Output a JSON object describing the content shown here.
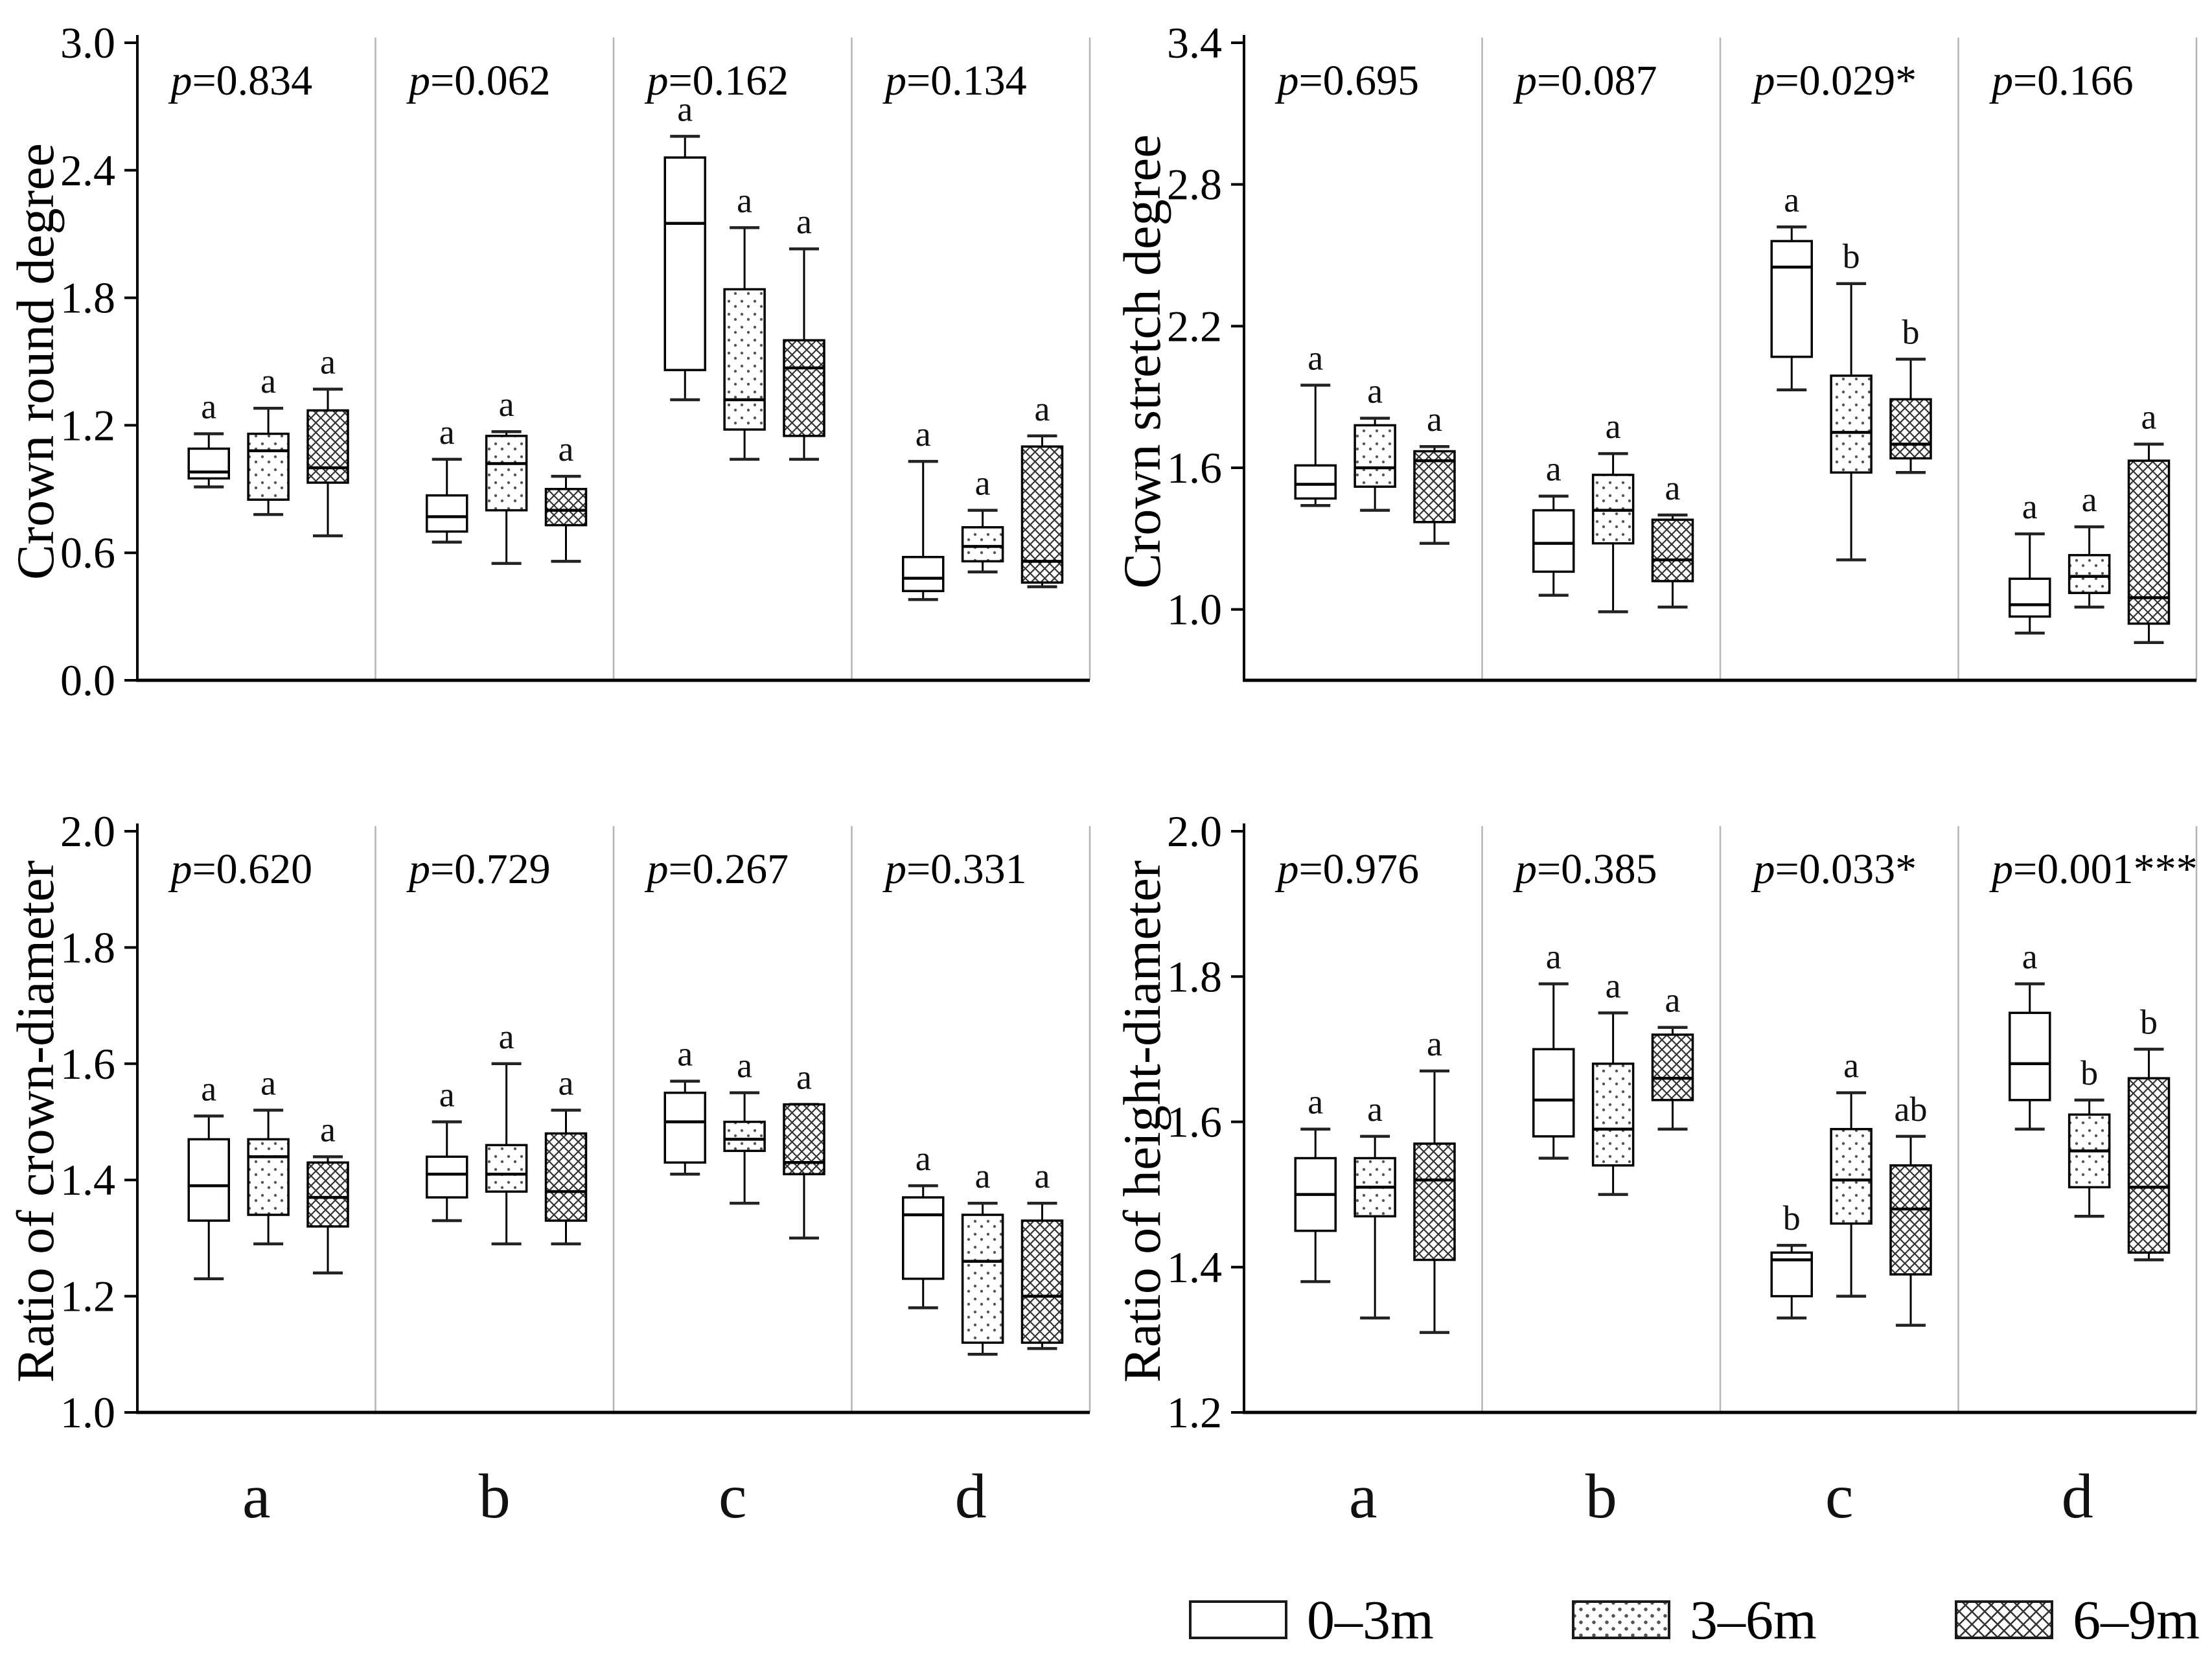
{
  "figure": {
    "background": "#ffffff",
    "ink_color": "#000000",
    "divider_color": "#b5b5b5"
  },
  "group_labels": [
    "a",
    "b",
    "c",
    "d"
  ],
  "legend": {
    "items": [
      {
        "label": "0–3m",
        "pattern": "plain"
      },
      {
        "label": "3–6m",
        "pattern": "dots"
      },
      {
        "label": "6–9m",
        "pattern": "crosshatch"
      }
    ]
  },
  "chart_data": [
    {
      "type": "box",
      "ylabel": "Crown round degree",
      "ylim": [
        0.0,
        3.0
      ],
      "yticks": [
        "3.0",
        "2.4",
        "1.8",
        "1.2",
        "0.6",
        "0.0"
      ],
      "legend_position": "none",
      "grid": false,
      "series": [
        "0–3m",
        "3–6m",
        "6–9m"
      ],
      "groups": [
        {
          "label": "a",
          "p_text": "p=0.834",
          "boxes": [
            {
              "series": "0–3m",
              "whislo": 0.91,
              "q1": 0.95,
              "med": 0.98,
              "q3": 1.09,
              "whishi": 1.16,
              "sig": "a"
            },
            {
              "series": "3–6m",
              "whislo": 0.78,
              "q1": 0.85,
              "med": 1.08,
              "q3": 1.16,
              "whishi": 1.28,
              "sig": "a"
            },
            {
              "series": "6–9m",
              "whislo": 0.68,
              "q1": 0.93,
              "med": 1.0,
              "q3": 1.27,
              "whishi": 1.37,
              "sig": "a"
            }
          ]
        },
        {
          "label": "b",
          "p_text": "p=0.062",
          "boxes": [
            {
              "series": "0–3m",
              "whislo": 0.65,
              "q1": 0.7,
              "med": 0.77,
              "q3": 0.87,
              "whishi": 1.04,
              "sig": "a"
            },
            {
              "series": "3–6m",
              "whislo": 0.55,
              "q1": 0.8,
              "med": 1.02,
              "q3": 1.15,
              "whishi": 1.17,
              "sig": "a"
            },
            {
              "series": "6–9m",
              "whislo": 0.56,
              "q1": 0.73,
              "med": 0.8,
              "q3": 0.9,
              "whishi": 0.96,
              "sig": "a"
            }
          ]
        },
        {
          "label": "c",
          "p_text": "p=0.162",
          "boxes": [
            {
              "series": "0–3m",
              "whislo": 1.32,
              "q1": 1.46,
              "med": 2.15,
              "q3": 2.46,
              "whishi": 2.56,
              "sig": "a"
            },
            {
              "series": "3–6m",
              "whislo": 1.04,
              "q1": 1.18,
              "med": 1.32,
              "q3": 1.84,
              "whishi": 2.13,
              "sig": "a"
            },
            {
              "series": "6–9m",
              "whislo": 1.04,
              "q1": 1.15,
              "med": 1.47,
              "q3": 1.6,
              "whishi": 2.03,
              "sig": "a"
            }
          ]
        },
        {
          "label": "d",
          "p_text": "p=0.134",
          "boxes": [
            {
              "series": "0–3m",
              "whislo": 0.38,
              "q1": 0.42,
              "med": 0.48,
              "q3": 0.58,
              "whishi": 1.03,
              "sig": "a"
            },
            {
              "series": "3–6m",
              "whislo": 0.51,
              "q1": 0.56,
              "med": 0.63,
              "q3": 0.72,
              "whishi": 0.8,
              "sig": "a"
            },
            {
              "series": "6–9m",
              "whislo": 0.44,
              "q1": 0.46,
              "med": 0.56,
              "q3": 1.1,
              "whishi": 1.15,
              "sig": "a"
            }
          ]
        }
      ]
    },
    {
      "type": "box",
      "ylabel": "Crown stretch degree",
      "ylim": [
        0.7,
        3.4
      ],
      "yticks": [
        "3.4",
        "2.8",
        "2.2",
        "1.6",
        "1.0"
      ],
      "legend_position": "none",
      "grid": false,
      "series": [
        "0–3m",
        "3–6m",
        "6–9m"
      ],
      "groups": [
        {
          "label": "a",
          "p_text": "p=0.695",
          "boxes": [
            {
              "series": "0–3m",
              "whislo": 1.44,
              "q1": 1.47,
              "med": 1.53,
              "q3": 1.61,
              "whishi": 1.95,
              "sig": "a"
            },
            {
              "series": "3–6m",
              "whislo": 1.42,
              "q1": 1.52,
              "med": 1.6,
              "q3": 1.78,
              "whishi": 1.81,
              "sig": "a"
            },
            {
              "series": "6–9m",
              "whislo": 1.28,
              "q1": 1.37,
              "med": 1.63,
              "q3": 1.67,
              "whishi": 1.69,
              "sig": "a"
            }
          ]
        },
        {
          "label": "b",
          "p_text": "p=0.087",
          "boxes": [
            {
              "series": "0–3m",
              "whislo": 1.06,
              "q1": 1.16,
              "med": 1.28,
              "q3": 1.42,
              "whishi": 1.48,
              "sig": "a"
            },
            {
              "series": "3–6m",
              "whislo": 0.99,
              "q1": 1.28,
              "med": 1.42,
              "q3": 1.57,
              "whishi": 1.66,
              "sig": "a"
            },
            {
              "series": "6–9m",
              "whislo": 1.01,
              "q1": 1.12,
              "med": 1.21,
              "q3": 1.38,
              "whishi": 1.4,
              "sig": "a"
            }
          ]
        },
        {
          "label": "c",
          "p_text": "p=0.029*",
          "boxes": [
            {
              "series": "0–3m",
              "whislo": 1.93,
              "q1": 2.07,
              "med": 2.45,
              "q3": 2.56,
              "whishi": 2.62,
              "sig": "a"
            },
            {
              "series": "3–6m",
              "whislo": 1.21,
              "q1": 1.58,
              "med": 1.75,
              "q3": 1.99,
              "whishi": 2.38,
              "sig": "b"
            },
            {
              "series": "6–9m",
              "whislo": 1.58,
              "q1": 1.64,
              "med": 1.7,
              "q3": 1.89,
              "whishi": 2.06,
              "sig": "b"
            }
          ]
        },
        {
          "label": "d",
          "p_text": "p=0.166",
          "boxes": [
            {
              "series": "0–3m",
              "whislo": 0.9,
              "q1": 0.97,
              "med": 1.02,
              "q3": 1.13,
              "whishi": 1.32,
              "sig": "a"
            },
            {
              "series": "3–6m",
              "whislo": 1.01,
              "q1": 1.07,
              "med": 1.14,
              "q3": 1.23,
              "whishi": 1.35,
              "sig": "a"
            },
            {
              "series": "6–9m",
              "whislo": 0.86,
              "q1": 0.94,
              "med": 1.05,
              "q3": 1.63,
              "whishi": 1.7,
              "sig": "a"
            }
          ]
        }
      ]
    },
    {
      "type": "box",
      "ylabel": "Ratio of crown-diameter",
      "ylim": [
        1.0,
        2.0
      ],
      "yticks": [
        "2.0",
        "1.8",
        "1.6",
        "1.4",
        "1.2",
        "1.0"
      ],
      "legend_position": "none",
      "grid": false,
      "series": [
        "0–3m",
        "3–6m",
        "6–9m"
      ],
      "groups": [
        {
          "label": "a",
          "p_text": "p=0.620",
          "boxes": [
            {
              "series": "0–3m",
              "whislo": 1.23,
              "q1": 1.33,
              "med": 1.39,
              "q3": 1.47,
              "whishi": 1.51,
              "sig": "a"
            },
            {
              "series": "3–6m",
              "whislo": 1.29,
              "q1": 1.34,
              "med": 1.44,
              "q3": 1.47,
              "whishi": 1.52,
              "sig": "a"
            },
            {
              "series": "6–9m",
              "whislo": 1.24,
              "q1": 1.32,
              "med": 1.37,
              "q3": 1.43,
              "whishi": 1.44,
              "sig": "a"
            }
          ]
        },
        {
          "label": "b",
          "p_text": "p=0.729",
          "boxes": [
            {
              "series": "0–3m",
              "whislo": 1.33,
              "q1": 1.37,
              "med": 1.41,
              "q3": 1.44,
              "whishi": 1.5,
              "sig": "a"
            },
            {
              "series": "3–6m",
              "whislo": 1.29,
              "q1": 1.38,
              "med": 1.41,
              "q3": 1.46,
              "whishi": 1.6,
              "sig": "a"
            },
            {
              "series": "6–9m",
              "whislo": 1.29,
              "q1": 1.33,
              "med": 1.38,
              "q3": 1.48,
              "whishi": 1.52,
              "sig": "a"
            }
          ]
        },
        {
          "label": "c",
          "p_text": "p=0.267",
          "boxes": [
            {
              "series": "0–3m",
              "whislo": 1.41,
              "q1": 1.43,
              "med": 1.5,
              "q3": 1.55,
              "whishi": 1.57,
              "sig": "a"
            },
            {
              "series": "3–6m",
              "whislo": 1.36,
              "q1": 1.45,
              "med": 1.47,
              "q3": 1.5,
              "whishi": 1.55,
              "sig": "a"
            },
            {
              "series": "6–9m",
              "whislo": 1.3,
              "q1": 1.41,
              "med": 1.43,
              "q3": 1.53,
              "whishi": 1.53,
              "sig": "a"
            }
          ]
        },
        {
          "label": "d",
          "p_text": "p=0.331",
          "boxes": [
            {
              "series": "0–3m",
              "whislo": 1.18,
              "q1": 1.23,
              "med": 1.34,
              "q3": 1.37,
              "whishi": 1.39,
              "sig": "a"
            },
            {
              "series": "3–6m",
              "whislo": 1.1,
              "q1": 1.12,
              "med": 1.26,
              "q3": 1.34,
              "whishi": 1.36,
              "sig": "a"
            },
            {
              "series": "6–9m",
              "whislo": 1.11,
              "q1": 1.12,
              "med": 1.2,
              "q3": 1.33,
              "whishi": 1.36,
              "sig": "a"
            }
          ]
        }
      ]
    },
    {
      "type": "box",
      "ylabel": "Ratio of height-diameter",
      "ylim": [
        1.2,
        2.0
      ],
      "yticks": [
        "2.0",
        "1.8",
        "1.6",
        "1.4",
        "1.2"
      ],
      "legend_position": "bottom-right",
      "grid": false,
      "series": [
        "0–3m",
        "3–6m",
        "6–9m"
      ],
      "groups": [
        {
          "label": "a",
          "p_text": "p=0.976",
          "boxes": [
            {
              "series": "0–3m",
              "whislo": 1.38,
              "q1": 1.45,
              "med": 1.5,
              "q3": 1.55,
              "whishi": 1.59,
              "sig": "a"
            },
            {
              "series": "3–6m",
              "whislo": 1.33,
              "q1": 1.47,
              "med": 1.51,
              "q3": 1.55,
              "whishi": 1.58,
              "sig": "a"
            },
            {
              "series": "6–9m",
              "whislo": 1.31,
              "q1": 1.41,
              "med": 1.52,
              "q3": 1.57,
              "whishi": 1.67,
              "sig": "a"
            }
          ]
        },
        {
          "label": "b",
          "p_text": "p=0.385",
          "boxes": [
            {
              "series": "0–3m",
              "whislo": 1.55,
              "q1": 1.58,
              "med": 1.63,
              "q3": 1.7,
              "whishi": 1.79,
              "sig": "a"
            },
            {
              "series": "3–6m",
              "whislo": 1.5,
              "q1": 1.54,
              "med": 1.59,
              "q3": 1.68,
              "whishi": 1.75,
              "sig": "a"
            },
            {
              "series": "6–9m",
              "whislo": 1.59,
              "q1": 1.63,
              "med": 1.66,
              "q3": 1.72,
              "whishi": 1.73,
              "sig": "a"
            }
          ]
        },
        {
          "label": "c",
          "p_text": "p=0.033*",
          "boxes": [
            {
              "series": "0–3m",
              "whislo": 1.33,
              "q1": 1.36,
              "med": 1.41,
              "q3": 1.42,
              "whishi": 1.43,
              "sig": "b"
            },
            {
              "series": "3–6m",
              "whislo": 1.36,
              "q1": 1.46,
              "med": 1.52,
              "q3": 1.59,
              "whishi": 1.64,
              "sig": "a"
            },
            {
              "series": "6–9m",
              "whislo": 1.32,
              "q1": 1.39,
              "med": 1.48,
              "q3": 1.54,
              "whishi": 1.58,
              "sig": "ab"
            }
          ]
        },
        {
          "label": "d",
          "p_text": "p=0.001***",
          "boxes": [
            {
              "series": "0–3m",
              "whislo": 1.59,
              "q1": 1.63,
              "med": 1.68,
              "q3": 1.75,
              "whishi": 1.79,
              "sig": "a"
            },
            {
              "series": "3–6m",
              "whislo": 1.47,
              "q1": 1.51,
              "med": 1.56,
              "q3": 1.61,
              "whishi": 1.63,
              "sig": "b"
            },
            {
              "series": "6–9m",
              "whislo": 1.41,
              "q1": 1.42,
              "med": 1.51,
              "q3": 1.66,
              "whishi": 1.7,
              "sig": "b"
            }
          ]
        }
      ]
    }
  ]
}
